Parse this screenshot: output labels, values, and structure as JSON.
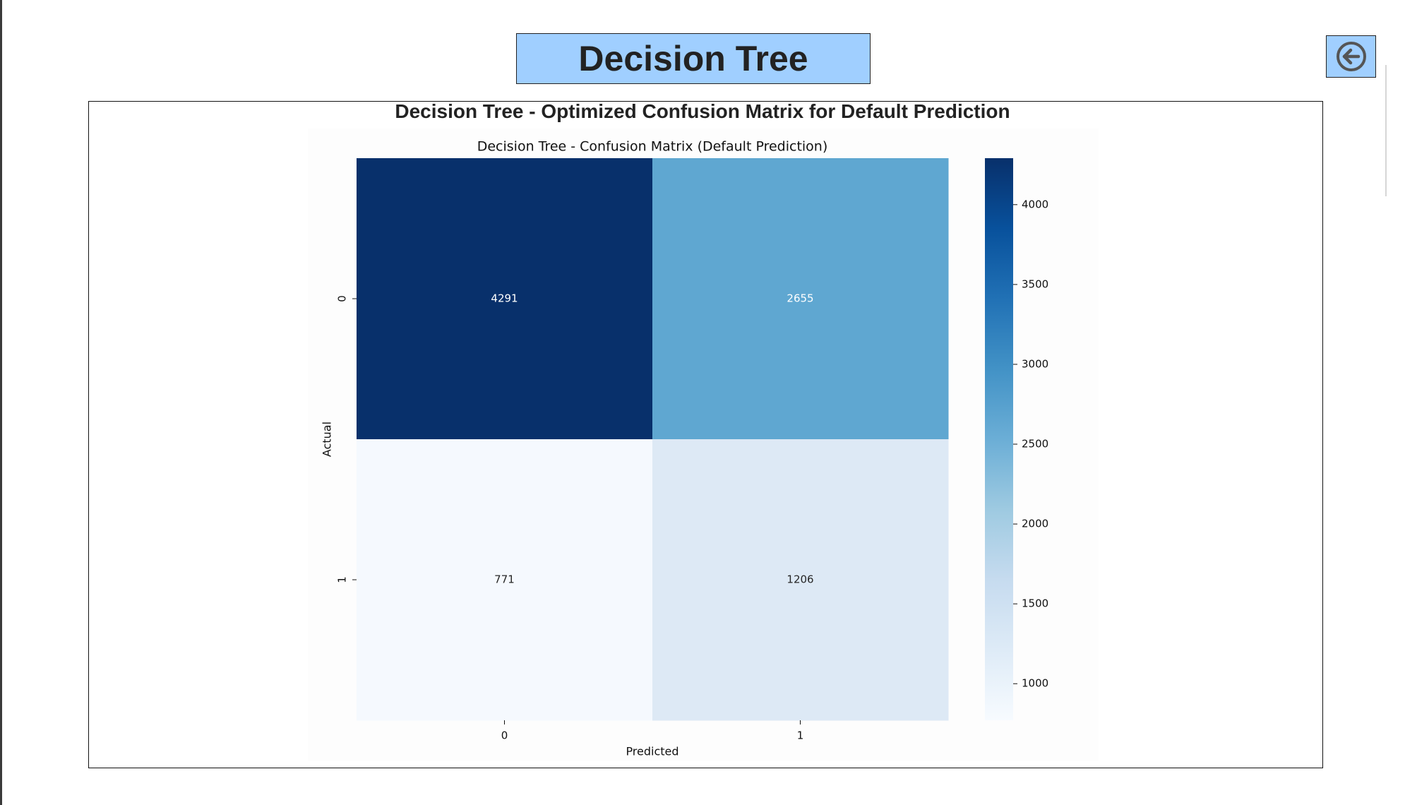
{
  "app": {
    "page_title": "Decision Tree",
    "banner_color": "#a0cfff",
    "back_button_color": "#a0cfff",
    "back_icon": "arrow-left-circle-icon"
  },
  "figure": {
    "title": "Decision Tree - Optimized Confusion Matrix for Default Prediction"
  },
  "chart_data": {
    "type": "heatmap",
    "title": "Decision Tree - Confusion Matrix (Default Prediction)",
    "xlabel": "Predicted",
    "ylabel": "Actual",
    "x_categories": [
      "0",
      "1"
    ],
    "y_categories": [
      "0",
      "1"
    ],
    "matrix": [
      [
        4291,
        2655
      ],
      [
        771,
        1206
      ]
    ],
    "colormap": "Blues",
    "colorbar": {
      "min": 771,
      "max": 4291,
      "ticks": [
        1000,
        1500,
        2000,
        2500,
        3000,
        3500,
        4000
      ]
    },
    "cell_colors": [
      [
        "#08306b",
        "#5fa7d1"
      ],
      [
        "#f5f9fe",
        "#dde9f5"
      ]
    ],
    "annotation_colors": [
      [
        "#ffffff",
        "#ffffff"
      ],
      [
        "#262626",
        "#262626"
      ]
    ],
    "grid": false
  }
}
